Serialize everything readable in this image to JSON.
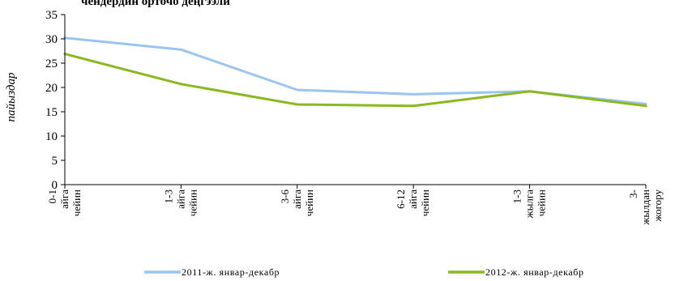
{
  "chart_data": {
    "type": "line",
    "title": "чендердин орточо деңгээли",
    "ylabel": "пайыздар",
    "xlabel": "",
    "ylim": [
      0,
      35
    ],
    "yticks": [
      0,
      5,
      10,
      15,
      20,
      25,
      30,
      35
    ],
    "grid": false,
    "legend_position": "bottom",
    "categories": [
      [
        "0-1",
        "айга",
        "чейин"
      ],
      [
        "1-3",
        "айга",
        "чейин"
      ],
      [
        "3-6",
        "айга",
        "чейин"
      ],
      [
        "6-12",
        "айга",
        "чейин"
      ],
      [
        "1-3",
        "жылга",
        "чейин"
      ],
      [
        "3-",
        "жылдан",
        "жогору"
      ]
    ],
    "series": [
      {
        "name": "2011-ж. январ-декабр",
        "color": "#9ac5f0",
        "values": [
          30.2,
          27.8,
          19.5,
          18.6,
          19.2,
          16.6
        ]
      },
      {
        "name": "2012-ж. январ-декабр",
        "color": "#8ab820",
        "values": [
          26.9,
          20.7,
          16.5,
          16.2,
          19.2,
          16.2
        ]
      }
    ]
  }
}
